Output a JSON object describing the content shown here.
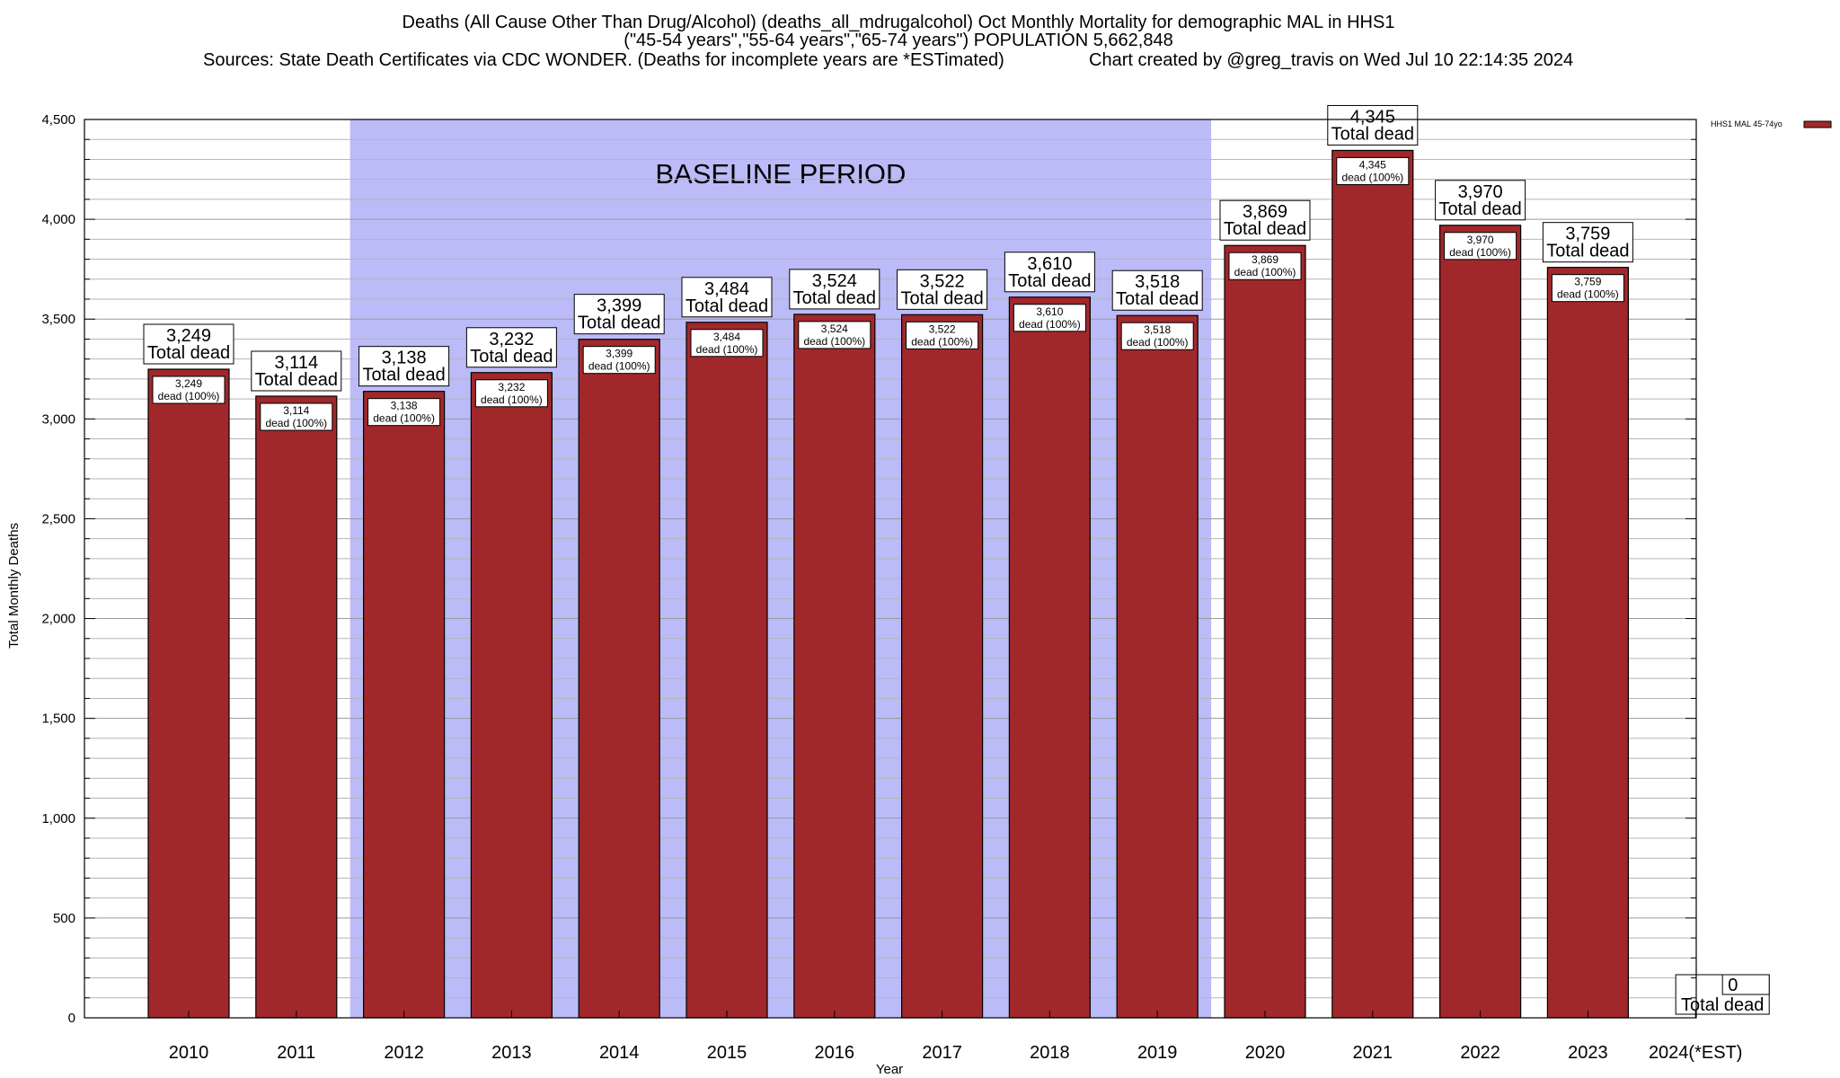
{
  "chart_data": {
    "type": "bar",
    "title_lines": [
      "Deaths (All Cause Other Than Drug/Alcohol) (deaths_all_mdrugalcohol) Oct Monthly Mortality for demographic MAL in HHS1",
      "(\"45-54 years\",\"55-64 years\",\"65-74 years\") POPULATION 5,662,848",
      "Sources: State Death Certificates via CDC WONDER. (Deaths for incomplete years are *ESTimated)"
    ],
    "credit": "Chart created by @greg_travis on Wed Jul 10 22:14:35 2024",
    "xlabel": "Year",
    "ylabel": "Total Monthly Deaths",
    "ylim": [
      0,
      4500
    ],
    "yticks": [
      0,
      500,
      1000,
      1500,
      2000,
      2500,
      3000,
      3500,
      4000,
      4500
    ],
    "ytick_labels": [
      "0",
      "500",
      "1,000",
      "1,500",
      "2,000",
      "2,500",
      "3,000",
      "3,500",
      "4,000",
      "4,500"
    ],
    "categories": [
      "2010",
      "2011",
      "2012",
      "2013",
      "2014",
      "2015",
      "2016",
      "2017",
      "2018",
      "2019",
      "2020",
      "2021",
      "2022",
      "2023",
      "2024(*EST)"
    ],
    "series": [
      {
        "name": "HHS1 MAL 45-74yo",
        "color": "#a0282b",
        "values": [
          3249,
          3114,
          3138,
          3232,
          3399,
          3484,
          3524,
          3522,
          3610,
          3518,
          3869,
          4345,
          3970,
          3759,
          0
        ],
        "value_labels": [
          "3,249",
          "3,114",
          "3,138",
          "3,232",
          "3,399",
          "3,484",
          "3,524",
          "3,522",
          "3,610",
          "3,518",
          "3,869",
          "4,345",
          "3,970",
          "3,759",
          "0"
        ]
      }
    ],
    "total_label_suffix": "Total dead",
    "inner_label_suffix": "dead (100%)",
    "baseline_band": {
      "label": "BASELINE PERIOD",
      "from": "2012",
      "to": "2019",
      "color": "#bbbbf8"
    },
    "grid": true,
    "legend_position": "top-right"
  }
}
